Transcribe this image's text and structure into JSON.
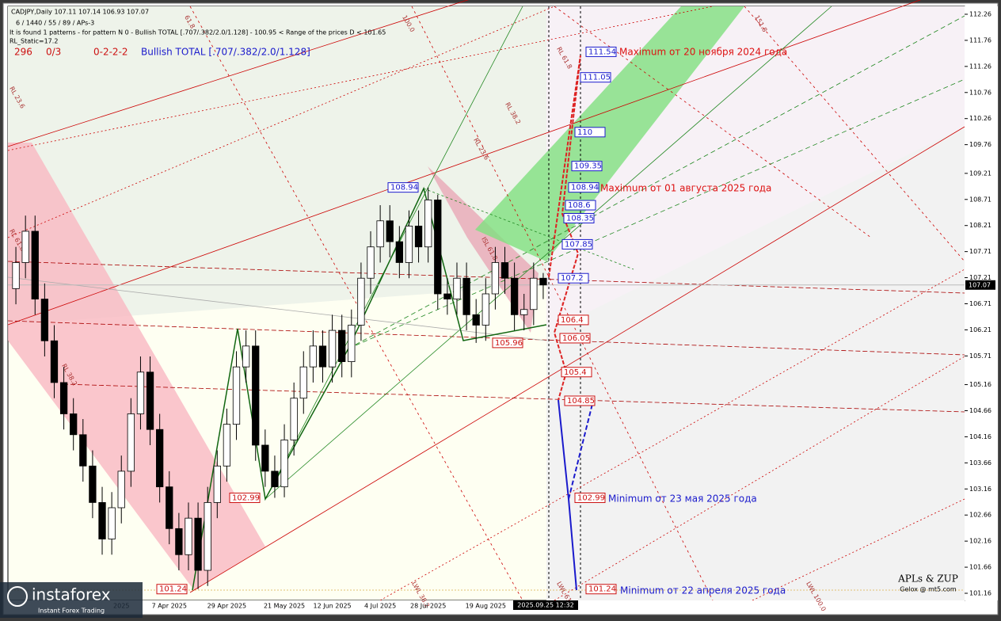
{
  "header": {
    "ohlc_line": "CADJPY,Daily  107.11 107.14 106.93 107.07",
    "params_line": "6 / 1440 / 55 / 89 / APs-3",
    "pattern_line": "It is found 1 patterns  -  for pattern N 0 - Bullish TOTAL [.707/.382/2.0/1.128] - 100.95 < Range of the prices D < 101.65",
    "static_line": "RL_Static=17.2",
    "counters": [
      "296",
      "0/3",
      "0-2-2-2"
    ],
    "pattern_name": "Bullish TOTAL [.707/.382/2.0/1.128]"
  },
  "chart_data": {
    "type": "candlestick",
    "categories": [
      null,
      null,
      null,
      null,
      null,
      null,
      null,
      null,
      null,
      null,
      null,
      "2025",
      null,
      null,
      null,
      null,
      "7 Apr 2025",
      null,
      null,
      null,
      null,
      null,
      "29 Apr 2025",
      null,
      null,
      null,
      null,
      null,
      "21 May 2025",
      null,
      null,
      null,
      null,
      "12 Jun 2025",
      null,
      null,
      null,
      null,
      "4 Jul 2025",
      null,
      null,
      null,
      null,
      "28 Jul 2025",
      null,
      null,
      null,
      null,
      null,
      "19 Aug 2025",
      null,
      null,
      null,
      null,
      null,
      null
    ],
    "open": [
      107.0,
      107.5,
      108.1,
      106.8,
      106.0,
      105.2,
      104.6,
      104.2,
      103.6,
      102.9,
      102.2,
      102.8,
      103.5,
      104.6,
      105.4,
      104.3,
      103.2,
      102.4,
      101.9,
      102.6,
      101.6,
      102.9,
      103.6,
      104.4,
      105.5,
      105.9,
      104.0,
      103.5,
      103.2,
      104.1,
      104.9,
      105.5,
      105.9,
      105.5,
      106.2,
      105.6,
      106.3,
      107.2,
      107.8,
      108.3,
      107.9,
      107.5,
      108.2,
      107.8,
      108.7,
      106.9,
      106.8,
      107.2,
      106.5,
      106.3,
      106.9,
      107.5,
      107.2,
      106.5,
      106.6,
      107.2
    ],
    "high": [
      107.8,
      108.4,
      108.4,
      107.1,
      106.3,
      105.5,
      104.9,
      104.5,
      103.9,
      103.2,
      103.1,
      103.8,
      104.9,
      105.7,
      105.7,
      104.6,
      103.5,
      102.7,
      102.9,
      102.9,
      103.2,
      103.9,
      104.7,
      105.8,
      106.2,
      106.2,
      104.3,
      103.8,
      104.4,
      105.2,
      105.8,
      106.2,
      106.2,
      106.5,
      106.5,
      106.6,
      107.5,
      108.1,
      108.6,
      108.6,
      108.2,
      108.5,
      108.5,
      108.94,
      108.8,
      107.2,
      107.5,
      107.5,
      106.8,
      107.2,
      107.8,
      107.8,
      107.5,
      106.9,
      107.5,
      107.3
    ],
    "low": [
      106.7,
      107.2,
      106.5,
      105.7,
      104.9,
      104.3,
      103.9,
      103.3,
      102.6,
      101.9,
      101.9,
      102.5,
      103.2,
      104.3,
      104.0,
      102.9,
      102.1,
      101.6,
      101.6,
      101.24,
      101.3,
      102.6,
      103.3,
      104.1,
      105.2,
      103.7,
      103.2,
      102.99,
      103.0,
      103.8,
      104.6,
      105.2,
      105.2,
      105.2,
      105.3,
      105.3,
      106.0,
      106.9,
      107.5,
      107.6,
      107.2,
      107.2,
      107.5,
      107.5,
      106.6,
      106.5,
      106.5,
      106.2,
      105.96,
      106.0,
      106.6,
      106.9,
      106.2,
      106.2,
      106.3,
      106.8
    ],
    "close": [
      107.5,
      108.1,
      106.8,
      106.0,
      105.2,
      104.6,
      104.2,
      103.6,
      102.9,
      102.2,
      102.8,
      103.5,
      104.6,
      105.4,
      104.3,
      103.2,
      102.4,
      101.9,
      102.6,
      101.6,
      102.9,
      103.6,
      104.4,
      105.5,
      105.9,
      104.0,
      103.5,
      103.2,
      104.1,
      104.9,
      105.5,
      105.9,
      105.5,
      106.2,
      105.6,
      106.3,
      107.2,
      107.8,
      108.3,
      107.9,
      107.5,
      108.2,
      107.8,
      108.7,
      106.9,
      106.8,
      107.2,
      106.5,
      106.3,
      106.9,
      107.5,
      107.2,
      106.5,
      106.6,
      107.2,
      107.07
    ],
    "ylim": [
      101.16,
      112.26
    ],
    "yticks": [
      112.26,
      111.76,
      111.26,
      110.76,
      110.26,
      109.76,
      109.21,
      108.71,
      108.21,
      107.71,
      107.21,
      106.71,
      106.21,
      105.71,
      105.16,
      104.66,
      104.16,
      103.66,
      103.16,
      102.66,
      102.16,
      101.66,
      101.16
    ],
    "current_price": 107.07,
    "cursor_label": "2025.09.25 12:32"
  },
  "levels": [
    {
      "value": 111.54,
      "color": "#1a1acc"
    },
    {
      "value": 111.05,
      "color": "#1a1acc"
    },
    {
      "value": 110.0,
      "color": "#1a1acc"
    },
    {
      "value": 109.35,
      "color": "#1a1acc"
    },
    {
      "value": 108.94,
      "color": "#1a1acc"
    },
    {
      "value": 108.6,
      "color": "#1a1acc"
    },
    {
      "value": 108.35,
      "color": "#1a1acc"
    },
    {
      "value": 107.85,
      "color": "#1a1acc"
    },
    {
      "value": 107.2,
      "color": "#1a1acc"
    },
    {
      "value": 106.4,
      "color": "#cc1111"
    },
    {
      "value": 106.05,
      "color": "#cc1111"
    },
    {
      "value": 105.4,
      "color": "#cc1111"
    },
    {
      "value": 104.85,
      "color": "#cc1111"
    },
    {
      "value": 102.99,
      "color": "#cc1111"
    },
    {
      "value": 101.24,
      "color": "#cc1111"
    }
  ],
  "pivots": [
    {
      "value": 108.94,
      "color": "#1a1acc"
    },
    {
      "value": 105.96,
      "color": "#cc1111"
    },
    {
      "value": 102.99,
      "color": "#cc1111"
    },
    {
      "value": 101.24,
      "color": "#cc1111"
    }
  ],
  "annotations": [
    {
      "text": "Maximum от 20 ноября 2024 года",
      "color": "#dd1111"
    },
    {
      "text": "Maximum от 01 августа 2025 года",
      "color": "#dd1111"
    },
    {
      "text": "Minimum от 23 мая 2025 года",
      "color": "#1a1acc"
    },
    {
      "text": "Minimum от 22 апреля 2025 года",
      "color": "#1a1acc"
    }
  ],
  "fan_labels": [
    "RL 23.6",
    "RL 61.8",
    "RL 38.2",
    "61.8",
    "100.0",
    "ISL 61.8",
    "RL 61.8",
    "RL 38.2",
    "RL 23.6",
    "151.8",
    "LWL 38.2",
    "LWL 61.8",
    "LWL 100.0"
  ],
  "footer": {
    "brand": "APLs & ZUP",
    "brand_sub": "Gelox @ mt5.com",
    "logo": "instaforex",
    "logo_sub": "Instant Forex Trading"
  }
}
